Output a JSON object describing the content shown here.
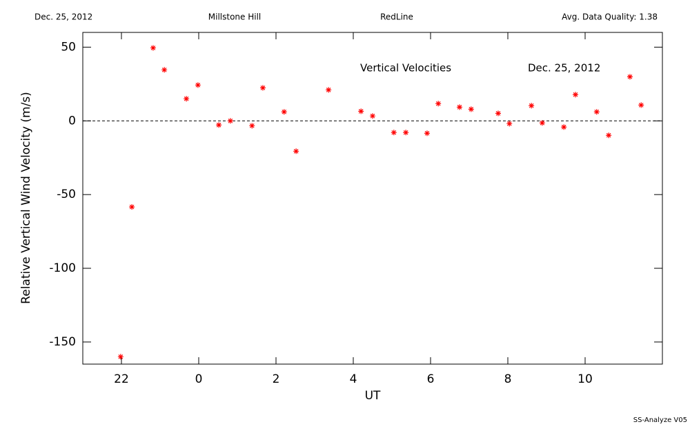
{
  "header": {
    "left": "Dec. 25, 2012",
    "site": "Millstone Hill",
    "instrument": "RedLine",
    "quality": "Avg. Data Quality: 1.38"
  },
  "footer": "SS-Analyze V05",
  "chart_data": {
    "type": "scatter",
    "annotations": [
      "Vertical Velocities",
      "Dec. 25, 2012"
    ],
    "xlabel": "UT",
    "ylabel": "Relative Vertical Wind Velocity (m/s)",
    "xlim": [
      -3,
      12
    ],
    "ylim": [
      -165,
      60
    ],
    "xticks": [
      {
        "value": -2,
        "label": "22"
      },
      0,
      2,
      4,
      6,
      8,
      10
    ],
    "yticks": [
      -150,
      -100,
      -50,
      0,
      50
    ],
    "hline": 0,
    "color": "#ff0000",
    "x": [
      -2.02,
      -1.73,
      -1.18,
      -0.89,
      -0.32,
      -0.02,
      0.52,
      0.82,
      1.38,
      1.66,
      2.21,
      2.52,
      3.36,
      4.2,
      4.5,
      5.05,
      5.36,
      5.91,
      6.2,
      6.75,
      7.05,
      7.75,
      8.04,
      8.61,
      8.89,
      9.45,
      9.75,
      10.3,
      10.61,
      11.16,
      11.45
    ],
    "values": [
      -160,
      -58.4,
      49.5,
      34.6,
      15,
      24.3,
      -2.8,
      0,
      -3.3,
      22.4,
      6.1,
      -20.6,
      21,
      6.5,
      3.3,
      -7.9,
      -7.9,
      -8.4,
      11.7,
      9.3,
      7.9,
      5.1,
      -1.9,
      10.3,
      -1.4,
      -4.2,
      17.8,
      6.1,
      -9.8,
      29.9,
      10.7
    ]
  }
}
